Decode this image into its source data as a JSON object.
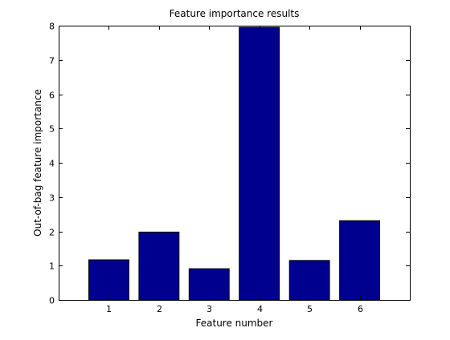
{
  "chart_data": {
    "type": "bar",
    "title": "Feature importance results",
    "xlabel": "Feature number",
    "ylabel": "Out-of-bag feature importance",
    "categories": [
      "1",
      "2",
      "3",
      "4",
      "5",
      "6"
    ],
    "x": [
      1,
      2,
      3,
      4,
      5,
      6
    ],
    "values": [
      1.17,
      1.98,
      0.91,
      7.95,
      1.15,
      2.31
    ],
    "xlim": [
      0,
      7
    ],
    "ylim": [
      0,
      8
    ],
    "yticks": [
      0,
      1,
      2,
      3,
      4,
      5,
      6,
      7,
      8
    ],
    "grid": false,
    "legend": "none",
    "bar_color": "#00008f",
    "edge_color": "#000000"
  }
}
